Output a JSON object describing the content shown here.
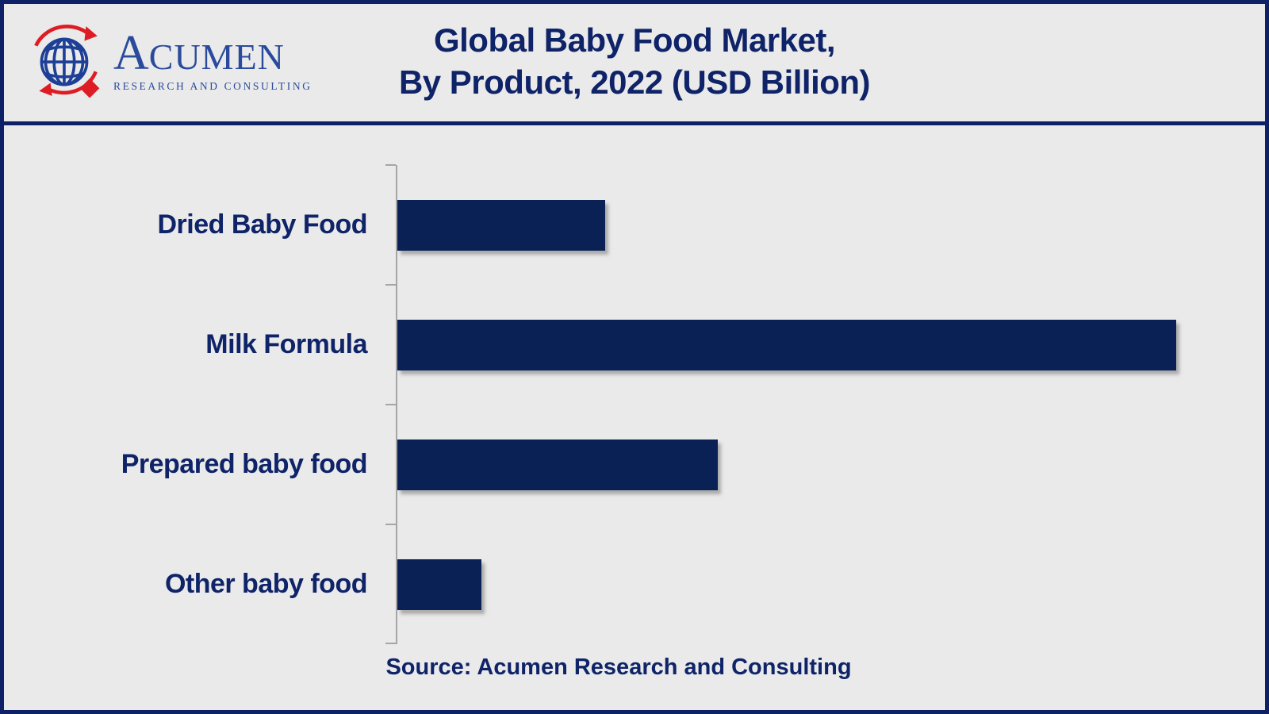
{
  "header": {
    "logo": {
      "brand_initial": "A",
      "brand_rest": "CUMEN",
      "tagline": "RESEARCH AND CONSULTING",
      "brand_color": "#2a4a9c",
      "accent_red": "#dd1c23"
    },
    "title_line1": "Global Baby Food Market,",
    "title_line2": "By Product, 2022 (USD Billion)"
  },
  "chart_data": {
    "type": "bar",
    "orientation": "horizontal",
    "title": "Global Baby Food Market, By Product, 2022 (USD Billion)",
    "categories": [
      "Dried Baby Food",
      "Milk Formula",
      "Prepared baby food",
      "Other baby food"
    ],
    "values": [
      26.7,
      100,
      41.1,
      10.8
    ],
    "value_note": "axis has no numeric tick labels; values are percent of the longest bar (Milk Formula = 100)",
    "xlabel": "",
    "ylabel": "",
    "grid": false,
    "legend": false,
    "bar_color": "#0a2156",
    "axis_color": "#a5a5a5"
  },
  "footer": {
    "source_text": "Source: Acumen Research and Consulting"
  },
  "colors": {
    "background": "#eaeaea",
    "frame_border": "#0e2167",
    "title_text": "#0f2368",
    "label_text": "#0f2368"
  }
}
